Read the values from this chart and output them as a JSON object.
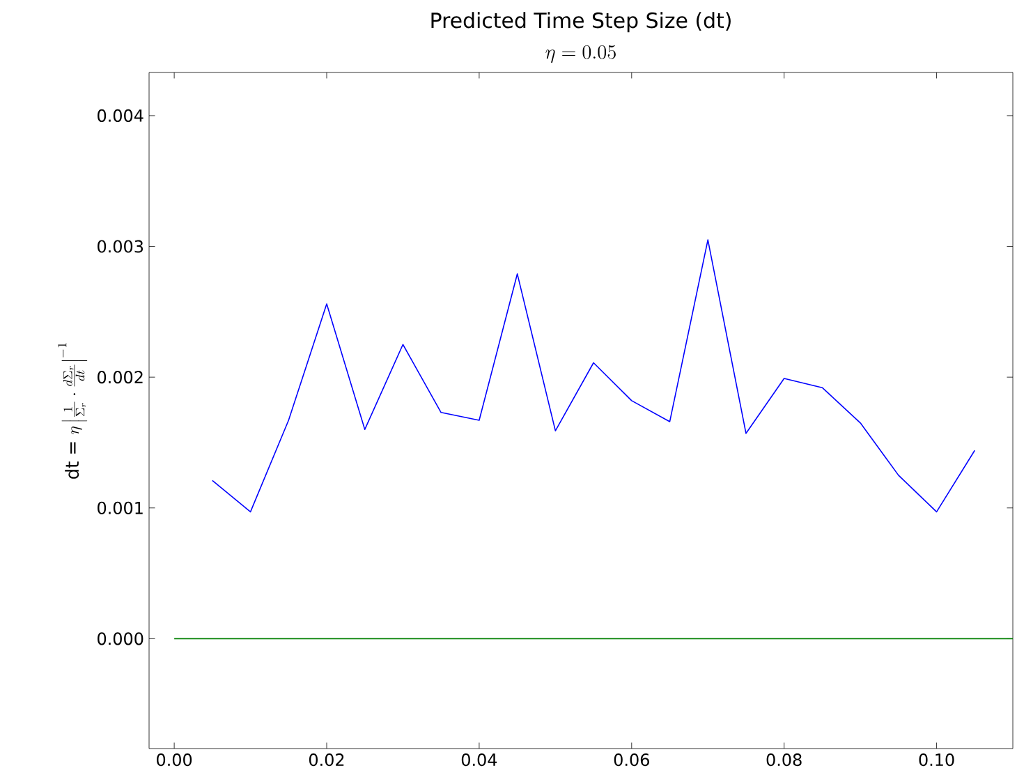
{
  "chart_data": {
    "type": "line",
    "title": "Predicted Time Step Size (dt)",
    "subtitle": "\\eta = 0.05",
    "ylabel": "\\mbox{dt =}\\ \\eta\\left|\\frac{1}{\\Sigma_r}\\cdot\\frac{d\\Sigma_r}{dt}\\right|^{-1}",
    "series": [
      {
        "color": "#0000ff",
        "x": [
          0.005,
          0.01,
          0.015,
          0.02,
          0.025,
          0.03,
          0.035,
          0.04,
          0.045,
          0.05,
          0.055,
          0.06,
          0.065,
          0.07,
          0.075,
          0.08,
          0.085,
          0.09,
          0.095,
          0.1,
          0.105
        ],
        "values": [
          0.00121,
          0.00097,
          0.00167,
          0.00256,
          0.0016,
          0.00225,
          0.00173,
          0.00167,
          0.00279,
          0.00159,
          0.00211,
          0.00182,
          0.00166,
          0.00305,
          0.00157,
          0.00199,
          0.00192,
          0.00165,
          0.00125,
          0.00097,
          0.00144
        ]
      },
      {
        "color": "#008000",
        "x": [
          0.0,
          0.11
        ],
        "values": [
          0.0,
          0.0
        ]
      }
    ],
    "xlim": [
      -0.0033,
      0.11
    ],
    "ylim": [
      -0.00084,
      0.00433
    ],
    "xticks": [
      {
        "value": 0.0,
        "label": "0.00"
      },
      {
        "value": 0.02,
        "label": "0.02"
      },
      {
        "value": 0.04,
        "label": "0.04"
      },
      {
        "value": 0.06,
        "label": "0.06"
      },
      {
        "value": 0.08,
        "label": "0.08"
      },
      {
        "value": 0.1,
        "label": "0.10"
      }
    ],
    "yticks": [
      {
        "value": 0.0,
        "label": "0.000"
      },
      {
        "value": 0.001,
        "label": "0.001"
      },
      {
        "value": 0.002,
        "label": "0.002"
      },
      {
        "value": 0.003,
        "label": "0.003"
      },
      {
        "value": 0.004,
        "label": "0.004"
      }
    ],
    "grid": false,
    "marker": "none",
    "line_style": "solid"
  }
}
